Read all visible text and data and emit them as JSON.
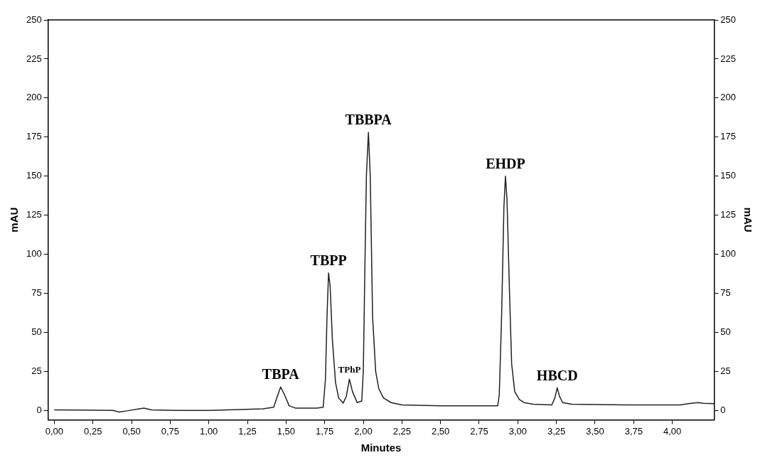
{
  "chart_data": {
    "type": "line",
    "xlabel": "Minutes",
    "ylabel": "mAU",
    "y2label": "mAU",
    "series": [
      {
        "color": "#222222",
        "x": [
          0,
          0.2,
          0.38,
          0.42,
          0.47,
          0.55,
          0.58,
          0.63,
          0.8,
          1.0,
          1.2,
          1.35,
          1.42,
          1.44,
          1.465,
          1.49,
          1.52,
          1.56,
          1.7,
          1.74,
          1.755,
          1.765,
          1.775,
          1.785,
          1.8,
          1.82,
          1.84,
          1.87,
          1.89,
          1.91,
          1.93,
          1.96,
          1.99,
          2.0,
          2.01,
          2.02,
          2.033,
          2.045,
          2.06,
          2.08,
          2.1,
          2.13,
          2.18,
          2.25,
          2.5,
          2.87,
          2.88,
          2.895,
          2.91,
          2.92,
          2.93,
          2.945,
          2.96,
          2.98,
          3.01,
          3.04,
          3.1,
          3.22,
          3.24,
          3.255,
          3.27,
          3.29,
          3.35,
          3.7,
          4.05,
          4.12,
          4.17,
          4.2,
          4.27
        ],
        "values": [
          0.3,
          0.2,
          0,
          -1,
          -0.3,
          1,
          1.5,
          0.3,
          0,
          0,
          0.5,
          1,
          2,
          8,
          15,
          10,
          3,
          1.5,
          1.5,
          2,
          20,
          60,
          88,
          80,
          45,
          18,
          8,
          4.7,
          9,
          20,
          12,
          5,
          6,
          25,
          90,
          150,
          178,
          150,
          60,
          25,
          14,
          8,
          5,
          3.5,
          3,
          3,
          10,
          60,
          130,
          150,
          135,
          80,
          30,
          12,
          7,
          5,
          4,
          3.5,
          8,
          14.5,
          9,
          5,
          4,
          3.5,
          3.5,
          4.5,
          5,
          4.5,
          4.3
        ]
      }
    ],
    "xlim": [
      -0.04,
      4.27
    ],
    "xticks": [
      {
        "value": 0,
        "label": "0,00"
      },
      {
        "value": 0.25,
        "label": "0,25"
      },
      {
        "value": 0.5,
        "label": "0,50"
      },
      {
        "value": 0.75,
        "label": "0,75"
      },
      {
        "value": 1,
        "label": "1,00"
      },
      {
        "value": 1.25,
        "label": "1,25"
      },
      {
        "value": 1.5,
        "label": "1,50"
      },
      {
        "value": 1.75,
        "label": "1,75"
      },
      {
        "value": 2,
        "label": "2,00"
      },
      {
        "value": 2.25,
        "label": "2,25"
      },
      {
        "value": 2.5,
        "label": "2,50"
      },
      {
        "value": 2.75,
        "label": "2,75"
      },
      {
        "value": 3,
        "label": "3,00"
      },
      {
        "value": 3.25,
        "label": "3,25"
      },
      {
        "value": 3.5,
        "label": "3,50"
      },
      {
        "value": 3.75,
        "label": "3,75"
      },
      {
        "value": 4,
        "label": "4,00"
      }
    ],
    "ylim": [
      -6,
      250
    ],
    "yticks": [
      0,
      25,
      50,
      75,
      100,
      125,
      150,
      175,
      200,
      225,
      250
    ],
    "y2lim": [
      -6,
      250
    ],
    "y2ticks": [
      0,
      25,
      50,
      75,
      100,
      125,
      150,
      175,
      200,
      225,
      250
    ],
    "grid": false,
    "legend": false,
    "marker": "none",
    "line_style": "solid",
    "annotations": [
      {
        "text": "TBPA",
        "x": 1.465,
        "y": 15
      },
      {
        "text": "TBPP",
        "x": 1.775,
        "y": 88
      },
      {
        "text": "TPhP",
        "x": 1.91,
        "y": 20
      },
      {
        "text": "TBBPA",
        "x": 2.033,
        "y": 178
      },
      {
        "text": "EHDP",
        "x": 2.92,
        "y": 150
      },
      {
        "text": "HBCD",
        "x": 3.255,
        "y": 14.5
      }
    ]
  }
}
